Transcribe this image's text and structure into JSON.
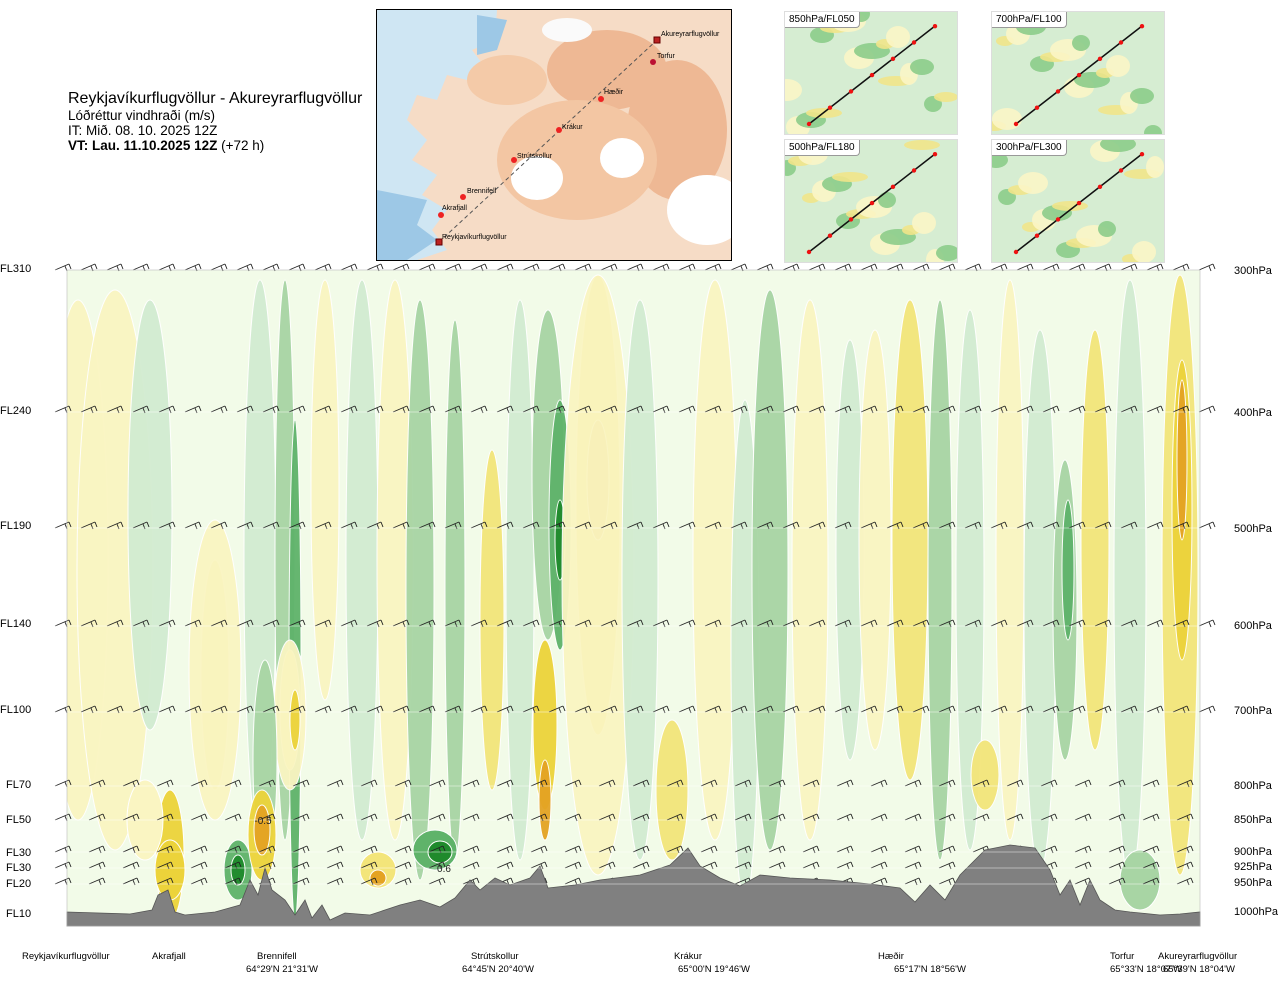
{
  "header": {
    "route_title": "Reykjavíkurflugvöllur - Akureyrarflugvöllur",
    "variable": "Lóðréttur vindhraði (m/s)",
    "initial_time": "IT: Mið. 08. 10. 2025 12Z",
    "valid_label": "VT: Lau. 11.10.2025 12Z",
    "valid_offset": "(+72 h)"
  },
  "map": {
    "stations": [
      "Reykjavíkurflugvöllur",
      "Akrafjall",
      "Brennifell",
      "Strútskollur",
      "Krákur",
      "Hæðir",
      "Torfur",
      "Akureyrarflugvöllur"
    ]
  },
  "mini_maps": [
    {
      "label": "850hPa/FL050"
    },
    {
      "label": "700hPa/FL100"
    },
    {
      "label": "500hPa/FL180"
    },
    {
      "label": "300hPa/FL300"
    }
  ],
  "levels": {
    "flight_levels": [
      "FL310",
      "FL240",
      "FL190",
      "FL140",
      "FL100",
      "FL70",
      "FL50",
      "FL30",
      "FL30",
      "FL20",
      "FL10"
    ],
    "pressure": [
      "300hPa",
      "400hPa",
      "500hPa",
      "600hPa",
      "700hPa",
      "800hPa",
      "850hPa",
      "900hPa",
      "925hPa",
      "950hPa",
      "1000hPa"
    ]
  },
  "route_points": [
    {
      "name": "Reykjavíkurflugvöllur",
      "coord": ""
    },
    {
      "name": "Akrafjall",
      "coord": ""
    },
    {
      "name": "Brennifell",
      "coord": "64°29'N 21°31'W"
    },
    {
      "name": "Strútskollur",
      "coord": "64°45'N 20°40'W"
    },
    {
      "name": "Krákur",
      "coord": "65°00'N 19°46'W"
    },
    {
      "name": "Hæðir",
      "coord": "65°17'N 18°56'W"
    },
    {
      "name": "Torfur",
      "coord": "65°33'N 18°07'W"
    },
    {
      "name": "Akureyrarflugvöllur",
      "coord": "65°39'N 18°04'W"
    }
  ],
  "chart_data": {
    "type": "heatmap",
    "title": "Lóðréttur vindhraði (m/s)",
    "x_categories": [
      "Reykjavíkurflugvöllur",
      "Akrafjall",
      "Brennifell",
      "Strútskollur",
      "Krákur",
      "Hæðir",
      "Torfur",
      "Akureyrarflugvöllur"
    ],
    "y_levels_hpa": [
      300,
      400,
      500,
      600,
      700,
      800,
      850,
      900,
      925,
      950,
      1000
    ],
    "annotations": [
      {
        "text": "-0.5",
        "station_near": "Brennifell",
        "level_hpa": 850
      },
      {
        "text": "0.6",
        "station_near": "Strútskollur",
        "level_hpa": 925
      }
    ],
    "colors": {
      "strong_up": "#1f8a2c",
      "up": "#5fb36a",
      "weak_up": "#a8d5a4",
      "very_weak_up": "#d2ecd1",
      "neutral": "#f2fbe8",
      "very_weak_down": "#faf5c2",
      "weak_down": "#f3e57a",
      "down": "#ecd33a",
      "strong_down": "#e4a323",
      "terrain": "#808080"
    }
  }
}
